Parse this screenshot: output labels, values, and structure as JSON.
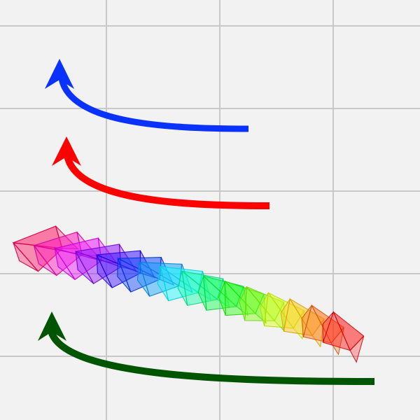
{
  "colors": {
    "background": "#f2f2f2",
    "grid": "#c8c8c8",
    "arrow_blue": "#0a32ff",
    "arrow_red": "#ff0000",
    "arrow_green": "#005500"
  },
  "arrows": [
    {
      "name": "blue-curved-arrow",
      "color_key": "arrow_blue",
      "direction": "up-left"
    },
    {
      "name": "red-curved-arrow",
      "color_key": "arrow_red",
      "direction": "up-left"
    },
    {
      "name": "green-curved-arrow",
      "color_key": "arrow_green",
      "direction": "up-left"
    }
  ],
  "pyramid_trail": {
    "count": 16,
    "hue_start": 340,
    "hue_end": 0,
    "hue_sequence": "magenta-purple-blue-cyan-green-yellow-orange-red",
    "opacity": 0.55
  }
}
